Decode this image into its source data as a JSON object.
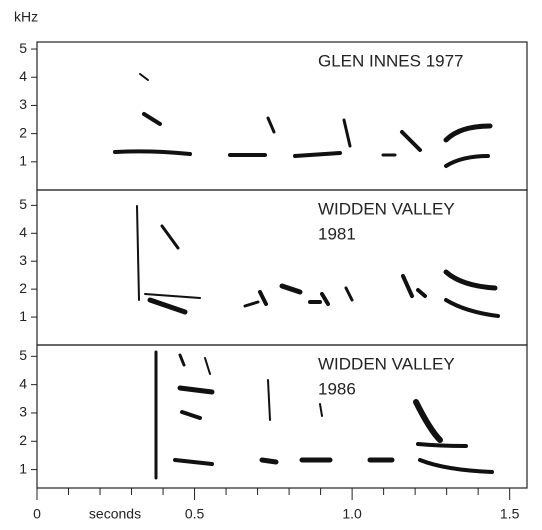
{
  "chart_data": [
    {
      "type": "spectrogram",
      "ylabel": "kHz",
      "title_lines": [
        "GLEN INNES 1977"
      ],
      "ylim": [
        0,
        5.25
      ],
      "yticks": [
        1,
        2,
        3,
        4,
        5
      ],
      "xlim": [
        0,
        1.555
      ]
    },
    {
      "type": "spectrogram",
      "title_lines": [
        "WIDDEN VALLEY",
        "1981"
      ],
      "ylim": [
        0,
        5.55
      ],
      "yticks": [
        1,
        2,
        3,
        4,
        5
      ],
      "xlim": [
        0,
        1.555
      ]
    },
    {
      "type": "spectrogram",
      "title_lines": [
        "WIDDEN VALLEY",
        "1986"
      ],
      "ylim": [
        0.35,
        5.4
      ],
      "yticks": [
        1,
        2,
        3,
        4,
        5
      ],
      "xlim": [
        0,
        1.555
      ],
      "xlabel": "seconds",
      "xticks": [
        0,
        0.5,
        {
          "value": 1,
          "label": "1.0"
        },
        1.5
      ],
      "xminorticks": [
        0.1,
        0.2,
        0.3,
        0.4,
        0.6,
        0.7,
        0.8,
        0.9,
        1.1,
        1.2,
        1.3,
        1.4
      ]
    }
  ]
}
